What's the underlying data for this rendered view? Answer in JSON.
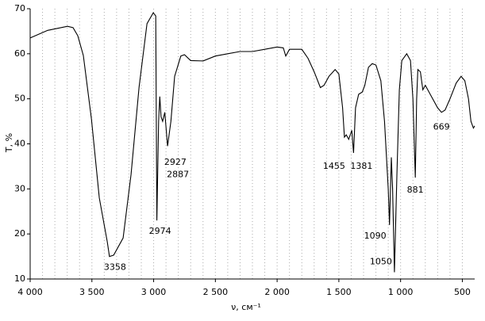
{
  "chart_data": {
    "type": "line",
    "x_label": "ν, см⁻¹",
    "y_label": "T, %",
    "xlim": [
      4000,
      400
    ],
    "ylim": [
      10,
      70
    ],
    "xticks": [
      {
        "value": 4000,
        "label": "4 000"
      },
      {
        "value": 3500,
        "label": "3 500"
      },
      {
        "value": 3000,
        "label": "3 000"
      },
      {
        "value": 2500,
        "label": "2 500"
      },
      {
        "value": 2000,
        "label": "2 000"
      },
      {
        "value": 1500,
        "label": "1 500"
      },
      {
        "value": 1000,
        "label": "1 000"
      },
      500
    ],
    "yticks": [
      10,
      20,
      30,
      40,
      50,
      60,
      70
    ],
    "xgrid": [
      3900,
      3800,
      3700,
      3600,
      3500,
      3400,
      3300,
      3200,
      3100,
      3000,
      2900,
      2800,
      2700,
      2600,
      2500,
      2400,
      2300,
      2200,
      2100,
      2000,
      1900,
      1800,
      1700,
      1600,
      1500,
      1400,
      1300,
      1200,
      1100,
      1000,
      900,
      800,
      700,
      600,
      500
    ],
    "grid": true,
    "series": [
      {
        "color": "#000000",
        "x": [
          4000,
          3858,
          3698,
          3653,
          3614,
          3569,
          3504,
          3440,
          3376,
          3358,
          3324,
          3247,
          3183,
          3118,
          3054,
          3003,
          2983,
          2974,
          2960,
          2950,
          2940,
          2927,
          2910,
          2887,
          2860,
          2830,
          2780,
          2750,
          2700,
          2600,
          2500,
          2400,
          2300,
          2200,
          2100,
          2000,
          1950,
          1930,
          1900,
          1800,
          1750,
          1700,
          1650,
          1620,
          1580,
          1530,
          1500,
          1470,
          1455,
          1440,
          1420,
          1395,
          1381,
          1365,
          1340,
          1310,
          1290,
          1260,
          1230,
          1200,
          1160,
          1130,
          1100,
          1090,
          1075,
          1065,
          1050,
          1030,
          1010,
          990,
          950,
          920,
          900,
          881,
          870,
          860,
          840,
          820,
          800,
          760,
          700,
          669,
          640,
          600,
          550,
          510,
          480,
          450,
          430,
          410,
          400
        ],
        "values": [
          63.5,
          65.2,
          66.1,
          65.8,
          64.0,
          59.6,
          45.5,
          28,
          18.3,
          15,
          15.3,
          19.1,
          33.2,
          52.6,
          66.7,
          69.1,
          68.4,
          23,
          45,
          50.5,
          46,
          45,
          47,
          39.5,
          45,
          55,
          59.5,
          59.8,
          58.5,
          58.4,
          59.5,
          60,
          60.5,
          60.5,
          61,
          61.5,
          61.3,
          59.5,
          61,
          61,
          59,
          56,
          52.5,
          53,
          55,
          56.5,
          55.5,
          48,
          41.5,
          42,
          41,
          43,
          38,
          48,
          51,
          51.5,
          53,
          57,
          57.8,
          57.5,
          54,
          45,
          30,
          22,
          37,
          30,
          11.5,
          33,
          52,
          58.5,
          60,
          58.5,
          50,
          32.5,
          50,
          56.5,
          56,
          52,
          53,
          51,
          48,
          47,
          47.5,
          50,
          53.5,
          55,
          54,
          50,
          45,
          43.5,
          44
        ]
      }
    ],
    "annotations": [
      {
        "text": "3358",
        "x": 3358,
        "y": 15
      },
      {
        "text": "2974",
        "x": 2974,
        "y": 23
      },
      {
        "text": "2927",
        "x": 2927,
        "y": 45
      },
      {
        "text": "2887",
        "x": 2887,
        "y": 39.5
      },
      {
        "text": "1455",
        "x": 1455,
        "y": 41.5
      },
      {
        "text": "1381",
        "x": 1381,
        "y": 38
      },
      {
        "text": "1090",
        "x": 1090,
        "y": 22
      },
      {
        "text": "1050",
        "x": 1050,
        "y": 11.5
      },
      {
        "text": "881",
        "x": 881,
        "y": 32.5
      },
      {
        "text": "669",
        "x": 669,
        "y": 47
      }
    ]
  }
}
